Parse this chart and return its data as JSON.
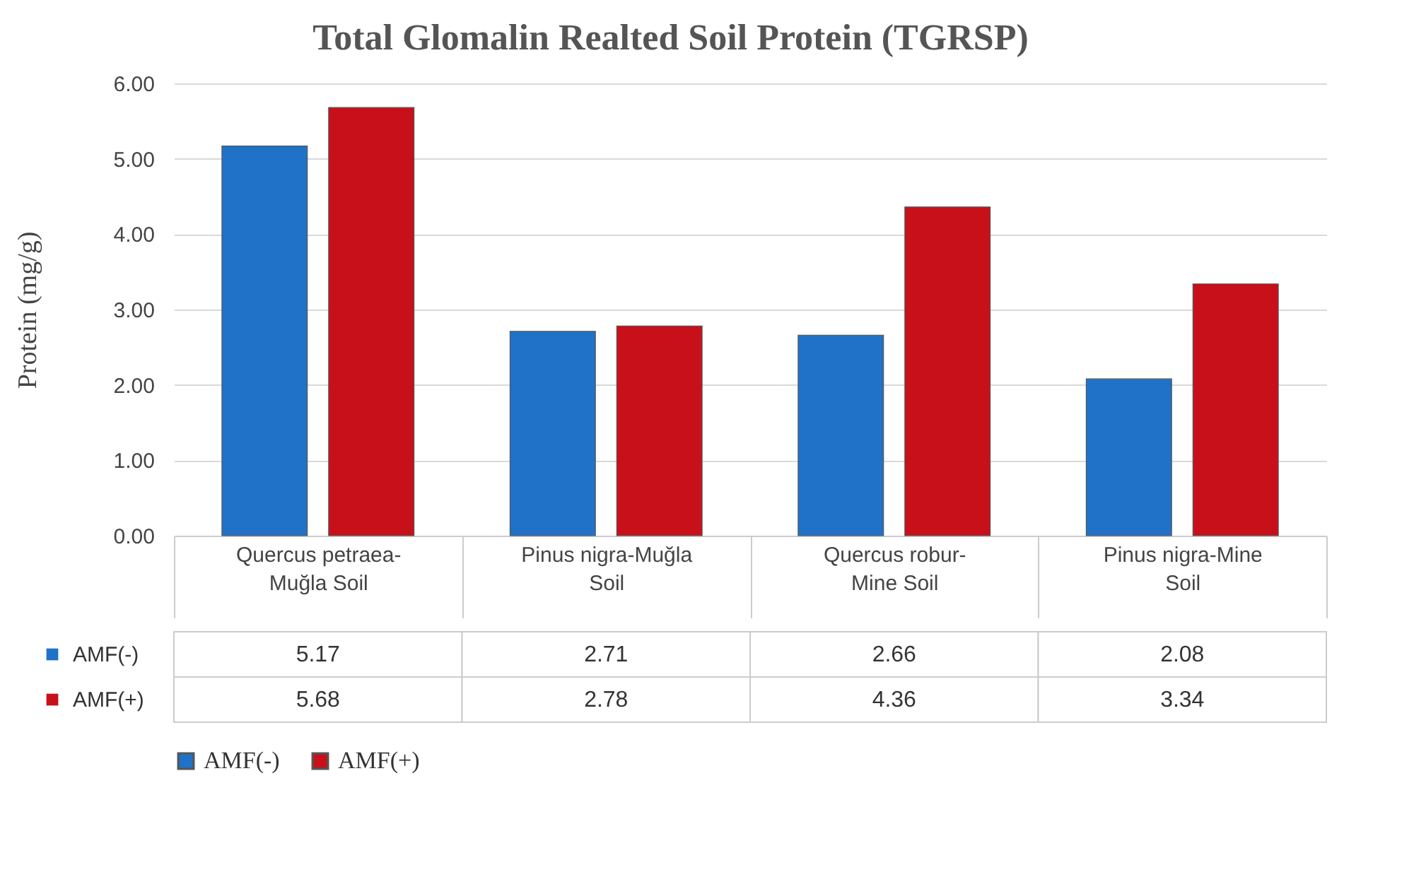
{
  "chart_data": {
    "type": "bar",
    "title": "Total Glomalin Realted Soil Protein (TGRSP)",
    "ylabel": "Protein (mg/g)",
    "categories": [
      "Quercus petraea-Muğla Soil",
      "Pinus nigra-Muğla Soil",
      "Quercus robur-Mine Soil",
      "Pinus nigra-Mine Soil"
    ],
    "series": [
      {
        "name": "AMF(-)",
        "color": "#1f72c8",
        "values": [
          5.17,
          2.71,
          2.66,
          2.08
        ]
      },
      {
        "name": "AMF(+)",
        "color": "#c8101a",
        "values": [
          5.68,
          2.78,
          4.36,
          3.34
        ]
      }
    ],
    "ylim": [
      0,
      6
    ],
    "yticks": [
      {
        "value": 0,
        "label": "0.00"
      },
      {
        "value": 1,
        "label": "1.00"
      },
      {
        "value": 2,
        "label": "2.00"
      },
      {
        "value": 3,
        "label": "3.00"
      },
      {
        "value": 4,
        "label": "4.00"
      },
      {
        "value": 5,
        "label": "5.00"
      },
      {
        "value": 6,
        "label": "6.00"
      }
    ],
    "grid": "y",
    "legend": "bottom",
    "data_labels": true
  }
}
